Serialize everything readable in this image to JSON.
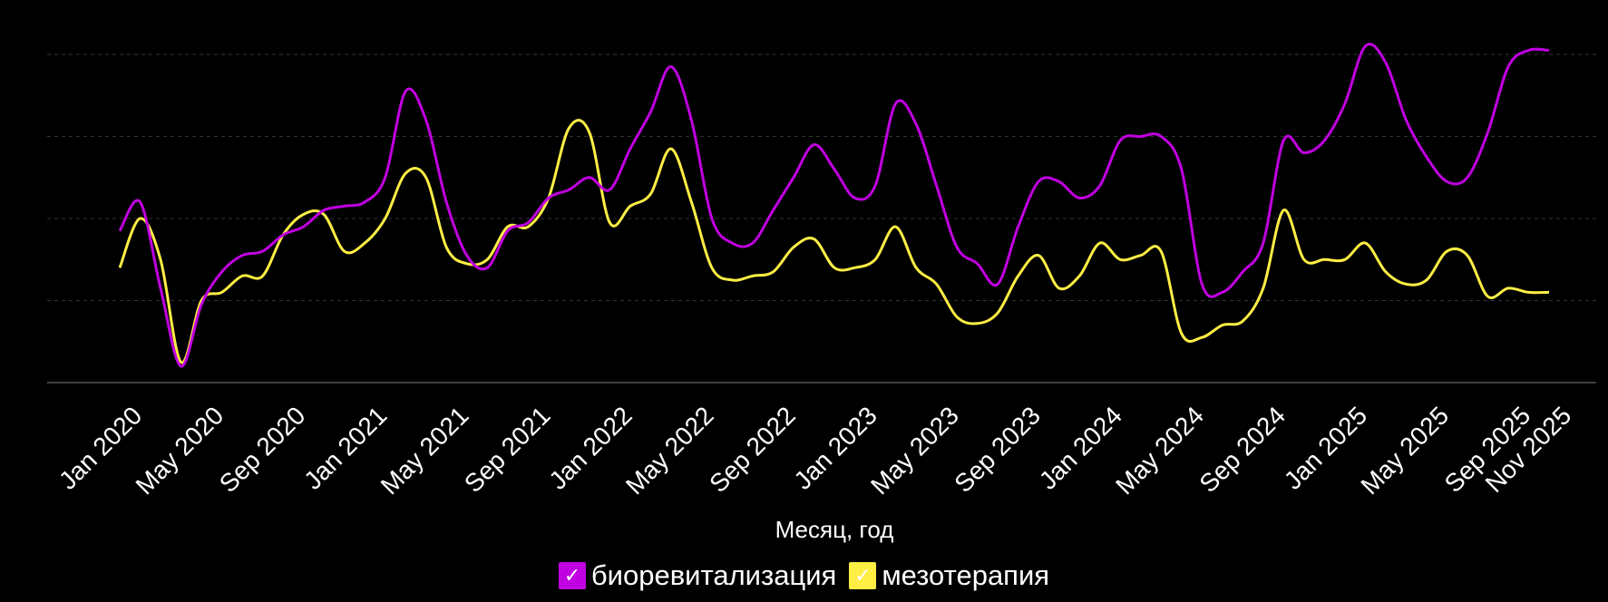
{
  "chart_data": {
    "type": "line",
    "title": "",
    "xlabel": "Месяц, год",
    "ylabel": "",
    "grid": true,
    "legend_placement": "bottom",
    "x": [
      "2020-01",
      "2020-02",
      "2020-03",
      "2020-04",
      "2020-05",
      "2020-06",
      "2020-07",
      "2020-08",
      "2020-09",
      "2020-10",
      "2020-11",
      "2020-12",
      "2021-01",
      "2021-02",
      "2021-03",
      "2021-04",
      "2021-05",
      "2021-06",
      "2021-07",
      "2021-08",
      "2021-09",
      "2021-10",
      "2021-11",
      "2021-12",
      "2022-01",
      "2022-02",
      "2022-03",
      "2022-04",
      "2022-05",
      "2022-06",
      "2022-07",
      "2022-08",
      "2022-09",
      "2022-10",
      "2022-11",
      "2022-12",
      "2023-01",
      "2023-02",
      "2023-03",
      "2023-04",
      "2023-05",
      "2023-06",
      "2023-07",
      "2023-08",
      "2023-09",
      "2023-10",
      "2023-11",
      "2023-12",
      "2024-01",
      "2024-02",
      "2024-03",
      "2024-04",
      "2024-05",
      "2024-06",
      "2024-07",
      "2024-08",
      "2024-09",
      "2024-10",
      "2024-11",
      "2024-12",
      "2025-01",
      "2025-02",
      "2025-03",
      "2025-04",
      "2025-05",
      "2025-06",
      "2025-07",
      "2025-08",
      "2025-09",
      "2025-10",
      "2025-11"
    ],
    "tick_labels": [
      "Jan 2020",
      "May 2020",
      "Sep 2020",
      "Jan 2021",
      "May 2021",
      "Sep 2021",
      "Jan 2022",
      "May 2022",
      "Sep 2022",
      "Jan 2023",
      "May 2023",
      "Sep 2023",
      "Jan 2024",
      "May 2024",
      "Sep 2024",
      "Jan 2025",
      "May 2025",
      "Sep 2025",
      "Nov 2025"
    ],
    "tick_index": [
      0,
      4,
      8,
      12,
      16,
      20,
      24,
      28,
      32,
      36,
      40,
      44,
      48,
      52,
      56,
      60,
      64,
      68,
      70
    ],
    "ylim": [
      0,
      4
    ],
    "gridlines": [
      1,
      2,
      3,
      4
    ],
    "series": [
      {
        "name": "биоревитализация",
        "color": "#c000e0",
        "values": [
          1.85,
          2.2,
          1.15,
          0.2,
          0.95,
          1.35,
          1.55,
          1.6,
          1.8,
          1.9,
          2.1,
          2.15,
          2.2,
          2.5,
          3.55,
          3.2,
          2.2,
          1.55,
          1.4,
          1.85,
          1.95,
          2.25,
          2.35,
          2.5,
          2.35,
          2.85,
          3.3,
          3.85,
          3.2,
          2.0,
          1.7,
          1.7,
          2.1,
          2.5,
          2.9,
          2.6,
          2.25,
          2.4,
          3.4,
          3.15,
          2.4,
          1.65,
          1.45,
          1.2,
          1.9,
          2.45,
          2.45,
          2.25,
          2.4,
          2.95,
          3.0,
          3.0,
          2.6,
          1.2,
          1.1,
          1.35,
          1.7,
          2.95,
          2.8,
          2.95,
          3.4,
          4.1,
          3.9,
          3.2,
          2.75,
          2.45,
          2.5,
          3.05,
          3.85,
          4.05,
          4.05
        ]
      },
      {
        "name": "мезотерапия",
        "color": "#ffee44",
        "values": [
          1.4,
          2.0,
          1.5,
          0.25,
          1.0,
          1.1,
          1.3,
          1.3,
          1.8,
          2.05,
          2.05,
          1.6,
          1.7,
          2.0,
          2.55,
          2.5,
          1.65,
          1.45,
          1.5,
          1.9,
          1.9,
          2.25,
          3.1,
          3.05,
          1.95,
          2.15,
          2.3,
          2.85,
          2.2,
          1.4,
          1.25,
          1.3,
          1.35,
          1.65,
          1.75,
          1.4,
          1.4,
          1.5,
          1.9,
          1.4,
          1.2,
          0.8,
          0.72,
          0.85,
          1.3,
          1.55,
          1.15,
          1.3,
          1.7,
          1.5,
          1.55,
          1.6,
          0.6,
          0.55,
          0.7,
          0.75,
          1.15,
          2.1,
          1.5,
          1.5,
          1.5,
          1.7,
          1.35,
          1.2,
          1.25,
          1.6,
          1.55,
          1.05,
          1.15,
          1.1,
          1.1
        ]
      }
    ]
  },
  "legend": {
    "check_glyph": "✓",
    "items": [
      {
        "label": "биоревитализация",
        "color": "#c000e0"
      },
      {
        "label": "мезотерапия",
        "color": "#ffee44"
      }
    ]
  }
}
